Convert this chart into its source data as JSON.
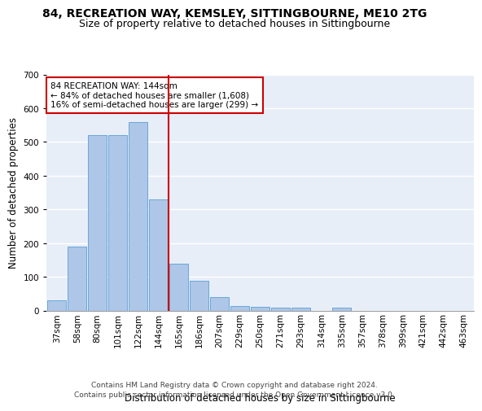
{
  "title": "84, RECREATION WAY, KEMSLEY, SITTINGBOURNE, ME10 2TG",
  "subtitle": "Size of property relative to detached houses in Sittingbourne",
  "xlabel": "Distribution of detached houses by size in Sittingbourne",
  "ylabel": "Number of detached properties",
  "categories": [
    "37sqm",
    "58sqm",
    "80sqm",
    "101sqm",
    "122sqm",
    "144sqm",
    "165sqm",
    "186sqm",
    "207sqm",
    "229sqm",
    "250sqm",
    "271sqm",
    "293sqm",
    "314sqm",
    "335sqm",
    "357sqm",
    "378sqm",
    "399sqm",
    "421sqm",
    "442sqm",
    "463sqm"
  ],
  "values": [
    30,
    190,
    520,
    520,
    560,
    330,
    140,
    87,
    40,
    13,
    10,
    8,
    8,
    0,
    8,
    0,
    0,
    0,
    0,
    0,
    0
  ],
  "bar_color": "#aec6e8",
  "bar_edge_color": "#5a9fd4",
  "vline_color": "#cc0000",
  "annotation_text": "84 RECREATION WAY: 144sqm\n← 84% of detached houses are smaller (1,608)\n16% of semi-detached houses are larger (299) →",
  "annotation_box_color": "#ffffff",
  "annotation_box_edge": "#cc0000",
  "ylim": [
    0,
    700
  ],
  "yticks": [
    0,
    100,
    200,
    300,
    400,
    500,
    600,
    700
  ],
  "background_color": "#e8eef8",
  "grid_color": "#ffffff",
  "footer": "Contains HM Land Registry data © Crown copyright and database right 2024.\nContains public sector information licensed under the Open Government Licence v3.0.",
  "title_fontsize": 10,
  "subtitle_fontsize": 9,
  "xlabel_fontsize": 8.5,
  "ylabel_fontsize": 8.5,
  "tick_fontsize": 7.5,
  "footer_fontsize": 6.5
}
